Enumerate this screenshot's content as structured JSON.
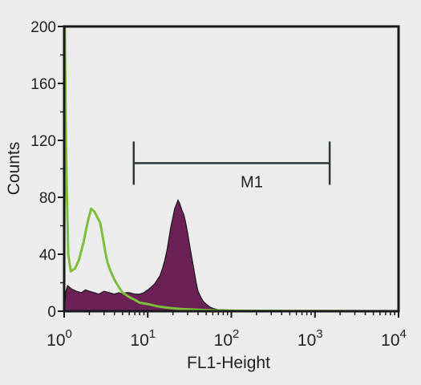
{
  "chart_data": {
    "type": "area",
    "xlabel": "FL1-Height",
    "ylabel": "Counts",
    "x_scale": "log",
    "xlim": [
      1,
      10000
    ],
    "ylim": [
      0,
      200
    ],
    "x_ticks": [
      {
        "value": 1,
        "base": "10",
        "exp": "0"
      },
      {
        "value": 10,
        "base": "10",
        "exp": "1"
      },
      {
        "value": 100,
        "base": "10",
        "exp": "2"
      },
      {
        "value": 1000,
        "base": "10",
        "exp": "3"
      },
      {
        "value": 10000,
        "base": "10",
        "exp": "4"
      }
    ],
    "y_ticks": [
      0,
      40,
      80,
      120,
      160,
      200
    ],
    "y_tick_labels": [
      "0",
      "40",
      "80",
      "120",
      "160",
      "200"
    ],
    "marker": {
      "label": "M1",
      "x_start": 6.8,
      "x_end": 1500,
      "y": 104
    },
    "series": [
      {
        "kind": "filled",
        "fill": "#6b2156",
        "stroke": "#1a1a1a",
        "x": [
          1,
          1.05,
          1.1,
          1.2,
          1.4,
          1.6,
          1.8,
          2,
          2.3,
          2.6,
          3,
          3.5,
          4,
          4.5,
          5,
          5.5,
          6,
          7,
          8,
          9,
          10,
          11,
          12,
          13,
          14,
          15,
          16,
          17,
          18,
          19,
          20,
          21,
          22,
          23,
          24,
          25,
          26,
          27,
          28,
          30,
          32,
          34,
          36,
          38,
          40,
          43,
          46,
          50,
          55,
          60,
          65,
          70,
          80,
          100,
          130,
          180,
          250,
          400,
          700,
          1000,
          10000
        ],
        "y": [
          0,
          14,
          18,
          16,
          14,
          13,
          15,
          14,
          13,
          12,
          14,
          13,
          12,
          13,
          12,
          13,
          13,
          12,
          12,
          13,
          15,
          17,
          19,
          22,
          25,
          30,
          36,
          43,
          52,
          60,
          66,
          72,
          75,
          78,
          76,
          73,
          70,
          68,
          64,
          55,
          45,
          36,
          28,
          20,
          14,
          10,
          7,
          5,
          3,
          2,
          1.5,
          1,
          1,
          0.8,
          0.6,
          0.4,
          0.3,
          0.2,
          0.2,
          0.1,
          0
        ]
      },
      {
        "kind": "outline",
        "stroke": "#7dbf3b",
        "x": [
          1,
          1.02,
          1.05,
          1.08,
          1.12,
          1.2,
          1.35,
          1.5,
          1.7,
          1.9,
          2.1,
          2.3,
          2.5,
          2.7,
          2.9,
          3.1,
          3.3,
          3.6,
          4,
          4.5,
          5,
          6,
          7,
          8,
          10,
          13,
          17,
          25,
          40,
          70,
          150,
          400,
          1000,
          10000
        ],
        "y": [
          10,
          200,
          120,
          80,
          40,
          28,
          30,
          36,
          48,
          62,
          72,
          70,
          66,
          62,
          52,
          42,
          34,
          28,
          22,
          17,
          13,
          10,
          8,
          6,
          5,
          3.5,
          2.5,
          1.5,
          1,
          0.5,
          0.3,
          0.2,
          0.1,
          0
        ]
      }
    ],
    "colors": {
      "axis": "#1a1a1a",
      "background": "#ececec",
      "marker": "#2a3a3a"
    }
  }
}
